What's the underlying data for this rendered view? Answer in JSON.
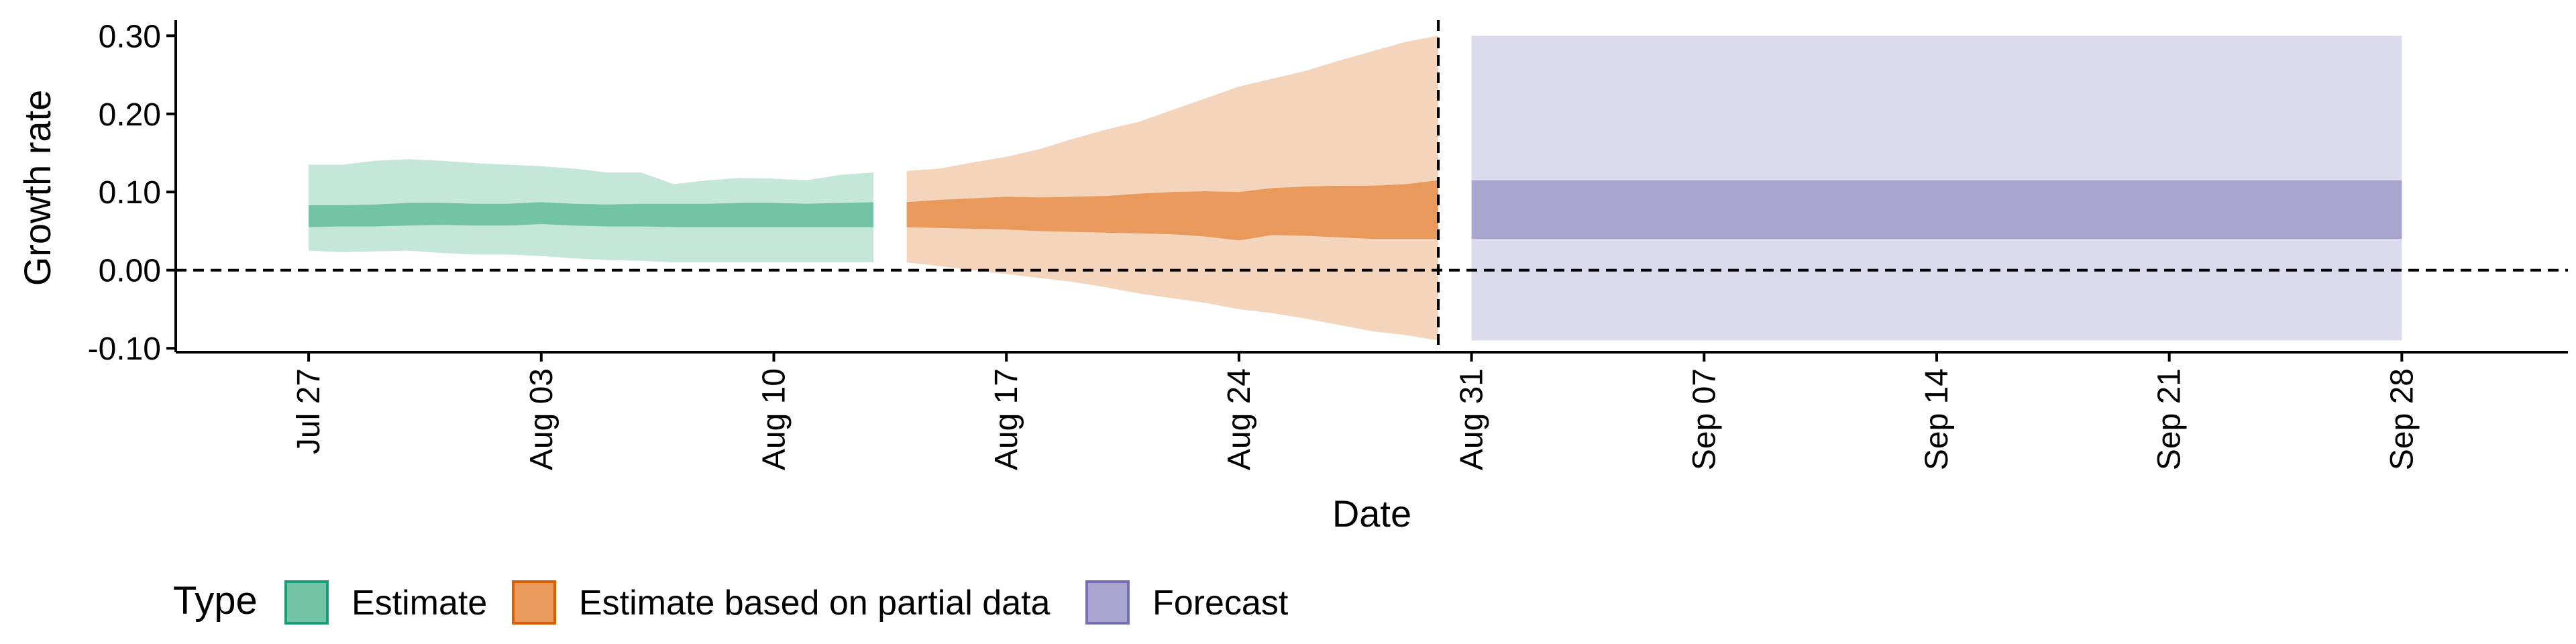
{
  "chart_data": {
    "type": "area",
    "title": "",
    "xlabel": "Date",
    "ylabel": "Growth rate",
    "ylim": [
      -0.105,
      0.32
    ],
    "xlim": [
      "2020-07-23",
      "2020-10-03"
    ],
    "grid": false,
    "legend_position": "bottom-left",
    "y_ticks": [
      {
        "value": -0.1,
        "label": "-0.10"
      },
      {
        "value": 0.0,
        "label": "0.00"
      },
      {
        "value": 0.1,
        "label": "0.10"
      },
      {
        "value": 0.2,
        "label": "0.20"
      },
      {
        "value": 0.3,
        "label": "0.30"
      }
    ],
    "x_ticks": [
      {
        "date": "2020-07-27",
        "label": "Jul 27"
      },
      {
        "date": "2020-08-03",
        "label": "Aug 03"
      },
      {
        "date": "2020-08-10",
        "label": "Aug 10"
      },
      {
        "date": "2020-08-17",
        "label": "Aug 17"
      },
      {
        "date": "2020-08-24",
        "label": "Aug 24"
      },
      {
        "date": "2020-08-31",
        "label": "Aug 31"
      },
      {
        "date": "2020-09-07",
        "label": "Sep 07"
      },
      {
        "date": "2020-09-14",
        "label": "Sep 14"
      },
      {
        "date": "2020-09-21",
        "label": "Sep 21"
      },
      {
        "date": "2020-09-28",
        "label": "Sep 28"
      }
    ],
    "reference_lines": {
      "horizontal_y": 0.0,
      "vertical_date": "2020-08-30"
    },
    "legend": {
      "title": "Type",
      "entries": [
        {
          "label": "Estimate",
          "fill": "#73c3a7",
          "border": "#1b9e77"
        },
        {
          "label": "Estimate based on partial data",
          "fill": "#e9995c",
          "border": "#d95f02"
        },
        {
          "label": "Forecast",
          "fill": "#a8a4ce",
          "border": "#7570b3"
        }
      ]
    },
    "series": [
      {
        "name": "Estimate",
        "colors": {
          "outer": "#c5e7da",
          "inner": "#73c3a7"
        },
        "x": [
          "2020-07-27",
          "2020-07-28",
          "2020-07-29",
          "2020-07-30",
          "2020-07-31",
          "2020-08-01",
          "2020-08-02",
          "2020-08-03",
          "2020-08-04",
          "2020-08-05",
          "2020-08-06",
          "2020-08-07",
          "2020-08-08",
          "2020-08-09",
          "2020-08-10",
          "2020-08-11",
          "2020-08-12",
          "2020-08-13"
        ],
        "outer_upper": [
          0.135,
          0.135,
          0.14,
          0.142,
          0.14,
          0.137,
          0.135,
          0.133,
          0.13,
          0.125,
          0.125,
          0.11,
          0.115,
          0.118,
          0.117,
          0.115,
          0.122,
          0.125
        ],
        "inner_upper": [
          0.083,
          0.083,
          0.084,
          0.086,
          0.086,
          0.085,
          0.085,
          0.087,
          0.085,
          0.084,
          0.085,
          0.085,
          0.085,
          0.086,
          0.086,
          0.085,
          0.086,
          0.087
        ],
        "inner_lower": [
          0.055,
          0.056,
          0.056,
          0.057,
          0.058,
          0.057,
          0.057,
          0.059,
          0.057,
          0.056,
          0.056,
          0.055,
          0.055,
          0.055,
          0.055,
          0.055,
          0.055,
          0.055
        ],
        "outer_lower": [
          0.025,
          0.023,
          0.024,
          0.025,
          0.022,
          0.02,
          0.02,
          0.018,
          0.015,
          0.013,
          0.012,
          0.01,
          0.01,
          0.01,
          0.01,
          0.01,
          0.01,
          0.01
        ]
      },
      {
        "name": "Estimate based on partial data",
        "colors": {
          "outer": "#f5d4bc",
          "inner": "#e9995c"
        },
        "x": [
          "2020-08-14",
          "2020-08-15",
          "2020-08-16",
          "2020-08-17",
          "2020-08-18",
          "2020-08-19",
          "2020-08-20",
          "2020-08-21",
          "2020-08-22",
          "2020-08-23",
          "2020-08-24",
          "2020-08-25",
          "2020-08-26",
          "2020-08-27",
          "2020-08-28",
          "2020-08-29",
          "2020-08-30"
        ],
        "outer_upper": [
          0.127,
          0.13,
          0.138,
          0.145,
          0.155,
          0.168,
          0.18,
          0.19,
          0.205,
          0.22,
          0.235,
          0.245,
          0.255,
          0.268,
          0.28,
          0.292,
          0.3
        ],
        "inner_upper": [
          0.087,
          0.09,
          0.092,
          0.094,
          0.093,
          0.094,
          0.095,
          0.098,
          0.1,
          0.101,
          0.1,
          0.105,
          0.107,
          0.108,
          0.108,
          0.11,
          0.115
        ],
        "inner_lower": [
          0.055,
          0.054,
          0.053,
          0.052,
          0.05,
          0.049,
          0.048,
          0.047,
          0.046,
          0.043,
          0.038,
          0.045,
          0.044,
          0.042,
          0.04,
          0.04,
          0.04
        ],
        "outer_lower": [
          0.01,
          0.005,
          0.0,
          -0.005,
          -0.01,
          -0.015,
          -0.022,
          -0.03,
          -0.036,
          -0.042,
          -0.05,
          -0.055,
          -0.062,
          -0.07,
          -0.078,
          -0.083,
          -0.09
        ]
      },
      {
        "name": "Forecast",
        "colors": {
          "outer": "#dcdbed",
          "inner": "#a8a4ce"
        },
        "x": [
          "2020-08-31",
          "2020-09-28"
        ],
        "outer_upper": [
          0.3,
          0.3
        ],
        "inner_upper": [
          0.115,
          0.115
        ],
        "inner_lower": [
          0.04,
          0.04
        ],
        "outer_lower": [
          -0.09,
          -0.09
        ]
      }
    ]
  }
}
